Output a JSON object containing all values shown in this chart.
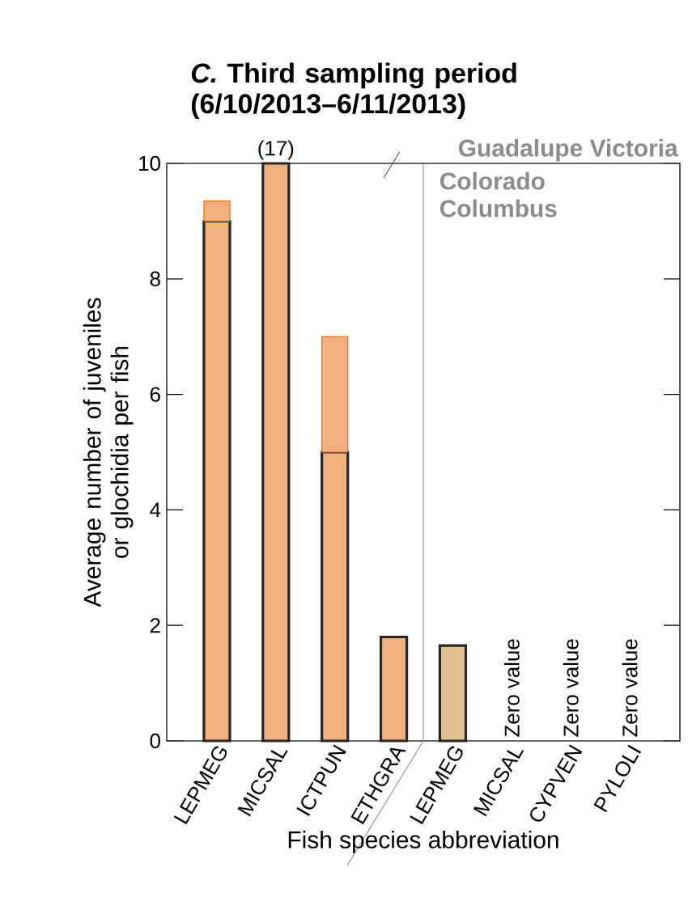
{
  "chart_data": {
    "type": "bar",
    "title": "*C.* Third sampling period (6/10/2013–6/11/2013)",
    "xlabel": "Fish species abbreviation",
    "ylabel": "Average number of juveniles or glochidia per fish",
    "categories": [
      "LEPMEG",
      "MICSAL",
      "ICTPUN",
      "ETHGRA",
      "LEPMEG",
      "MICSAL",
      "CYPVEN",
      "PYLOLI"
    ],
    "stacked": true,
    "series": [
      {
        "colors": [
          "#f0b080",
          "#f0b080",
          "#f0b080",
          "#f0b080",
          "#e3bf90",
          "#e3bf90",
          "#e3bf90",
          "#e3bf90"
        ],
        "values": [
          9,
          10,
          5,
          1.8,
          1.65,
          0,
          0,
          0
        ],
        "value_labels": [
          null,
          null,
          null,
          null,
          null,
          "Zero value",
          "Zero value",
          "Zero value"
        ]
      },
      {
        "colors": [
          "#f0b080",
          "#f0b080",
          "#f0b080",
          "#f0b080",
          "#e3bf90",
          "#e3bf90",
          "#e3bf90",
          "#e3bf90"
        ],
        "values": [
          0.35,
          0,
          2,
          0,
          0,
          0,
          0,
          0
        ]
      }
    ],
    "ylim": [
      0,
      10
    ],
    "yticks": [
      0,
      2,
      4,
      6,
      8,
      10
    ],
    "annotations": [
      {
        "text": "(17)",
        "x": "MICSAL",
        "y": 10
      },
      "Guadalupe Victoria",
      "Colorado Columbus"
    ]
  }
}
